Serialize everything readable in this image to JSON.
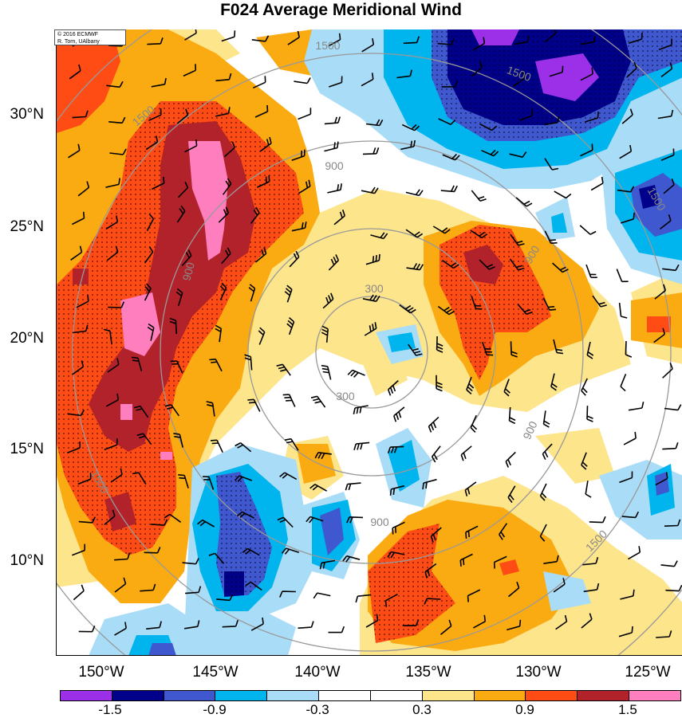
{
  "title": "F024 Average Meridional Wind",
  "credit": {
    "line1": "© 2016 ECMWF",
    "line2": "R. Torn, UAlbany"
  },
  "lat_labels": [
    "30°N",
    "25°N",
    "20°N",
    "15°N",
    "10°N"
  ],
  "lon_labels": [
    "150°W",
    "145°W",
    "140°W",
    "135°W",
    "130°W",
    "125°W"
  ],
  "contour_labels": [
    "300",
    "300",
    "900",
    "900",
    "900",
    "900",
    "900",
    "1500",
    "1500",
    "1500",
    "1500",
    "1500",
    "1500"
  ],
  "colorbar": {
    "colors": [
      "#9b30e8",
      "#00008b",
      "#3f58cf",
      "#00b4ee",
      "#a9dcf7",
      "#ffffff",
      "#ffffff",
      "#fde58c",
      "#fbab12",
      "#ff4b14",
      "#b2222a",
      "#ff7fbe"
    ],
    "labels": [
      "-1.5",
      "-0.9",
      "-0.3",
      "0.3",
      "0.9",
      "1.5"
    ]
  },
  "palette": {
    "purple": "#9b30e8",
    "navy": "#00008b",
    "blue": "#3f58cf",
    "cyan": "#00b4ee",
    "lightblue": "#a9dcf7",
    "lightyellow": "#fde58c",
    "orange": "#fbab12",
    "red": "#ff4b14",
    "darkred": "#b2222a",
    "pink": "#ff7fbe",
    "contour": "#999999"
  }
}
